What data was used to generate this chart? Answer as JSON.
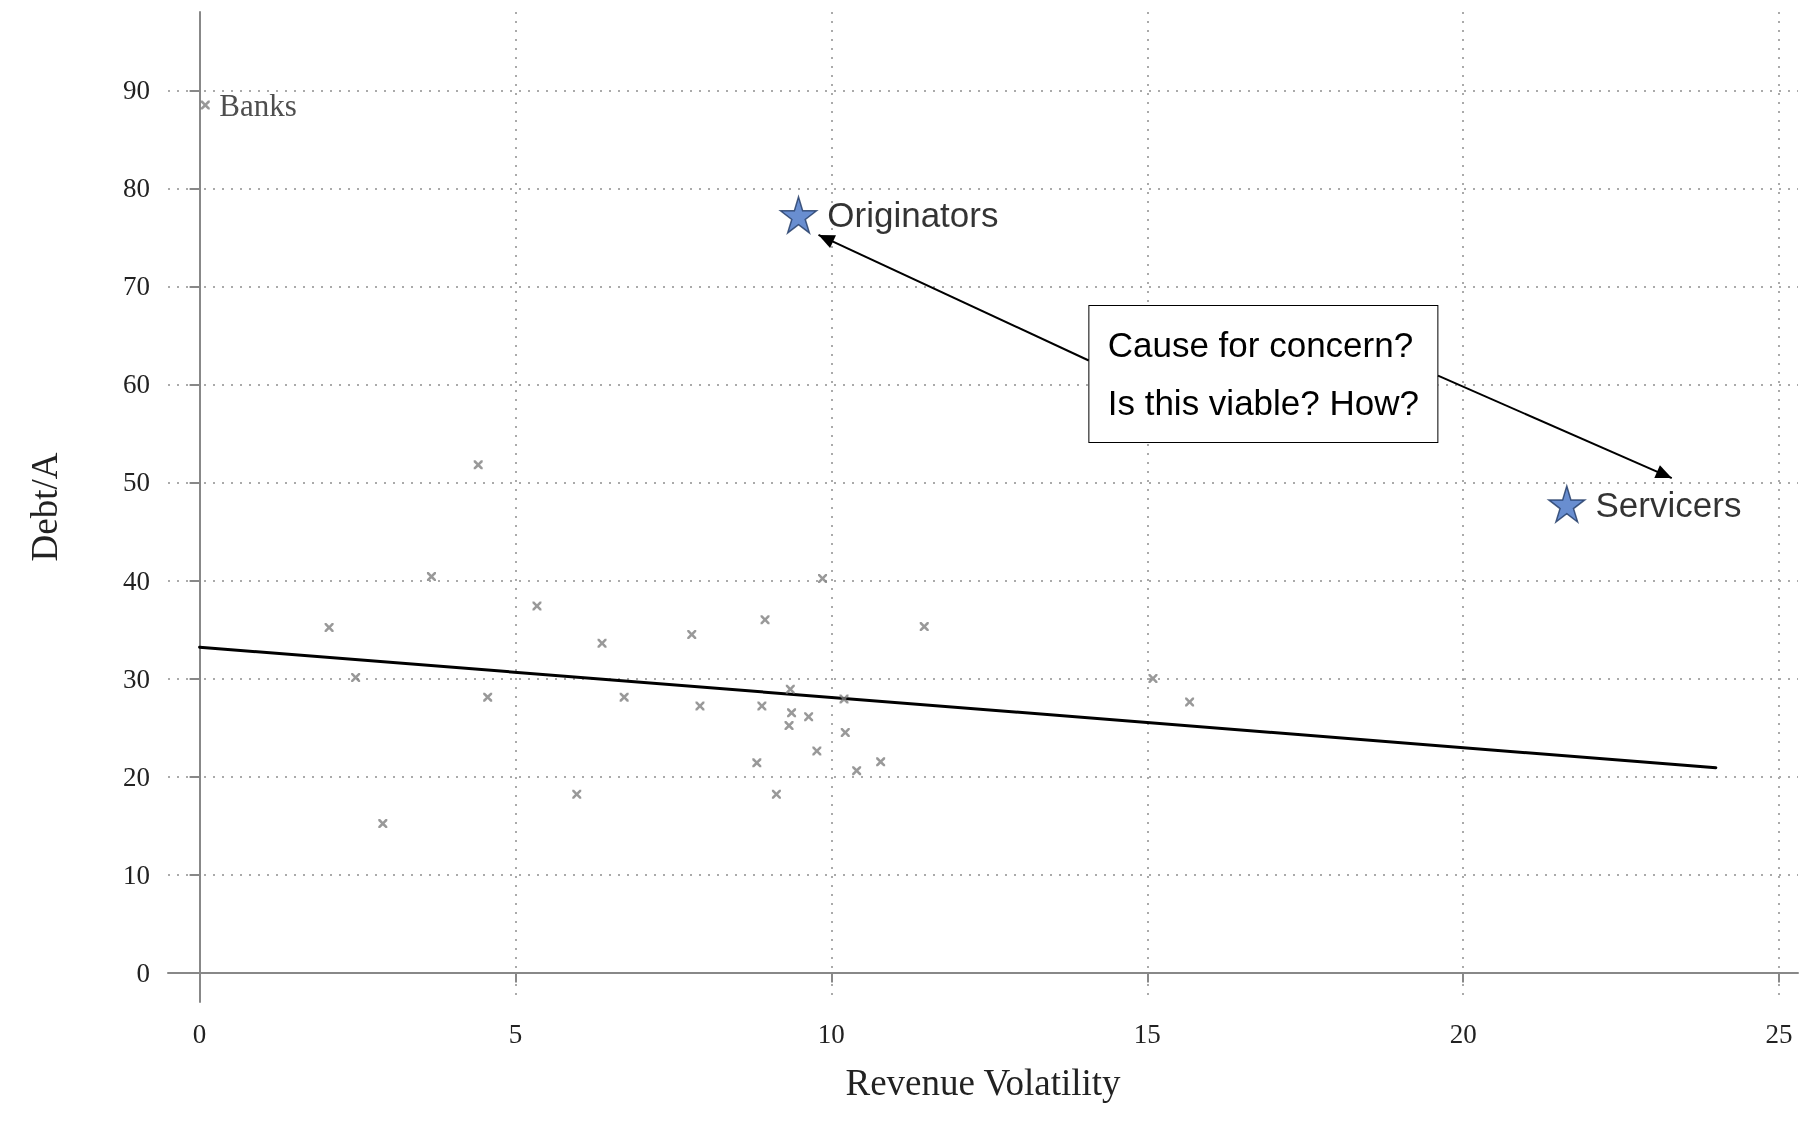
{
  "chart_data": {
    "type": "scatter",
    "xlabel": "Revenue Volatility",
    "ylabel": "Debt/A",
    "xlim": [
      -0.5,
      25.3
    ],
    "ylim": [
      -3,
      98
    ],
    "xticks": [
      0,
      5,
      10,
      15,
      20,
      25
    ],
    "yticks": [
      0,
      10,
      20,
      30,
      40,
      50,
      60,
      70,
      80,
      90
    ],
    "grid": true,
    "legend": false,
    "series": [
      {
        "type": "scatter",
        "marker": "cross",
        "color": "#7f7f7f",
        "x": [
          0.09,
          2.05,
          2.47,
          2.9,
          3.67,
          4.41,
          4.56,
          5.34,
          5.97,
          6.37,
          6.72,
          7.79,
          7.92,
          8.82,
          8.9,
          8.95,
          9.13,
          9.33,
          9.35,
          9.37,
          9.64,
          9.77,
          9.86,
          10.2,
          10.22,
          10.4,
          10.78,
          11.47,
          15.09,
          15.67
        ],
        "values": [
          88.5,
          35.2,
          30.1,
          15.2,
          40.4,
          51.8,
          28.1,
          37.4,
          18.2,
          33.6,
          28.1,
          34.5,
          27.2,
          21.4,
          27.2,
          36.0,
          18.2,
          25.2,
          28.9,
          26.5,
          26.1,
          22.6,
          40.2,
          27.9,
          24.5,
          20.6,
          21.5,
          35.3,
          30.0,
          27.6
        ]
      },
      {
        "type": "line",
        "marker": "none",
        "line_style": "solid",
        "color": "#000000",
        "x": [
          0,
          24
        ],
        "values": [
          33.2,
          20.9
        ]
      },
      {
        "type": "scatter",
        "marker": "star",
        "name": "Originators",
        "color": "#4472c4",
        "x": [
          9.48
        ],
        "values": [
          77.3
        ]
      },
      {
        "type": "scatter",
        "marker": "star",
        "name": "Servicers",
        "color": "#4472c4",
        "x": [
          21.64
        ],
        "values": [
          47.8
        ]
      }
    ],
    "annotations": [
      {
        "text": "Banks",
        "x": 0.09,
        "y": 88.5
      },
      "Cause for concern?\nIs this viable? How?"
    ]
  }
}
